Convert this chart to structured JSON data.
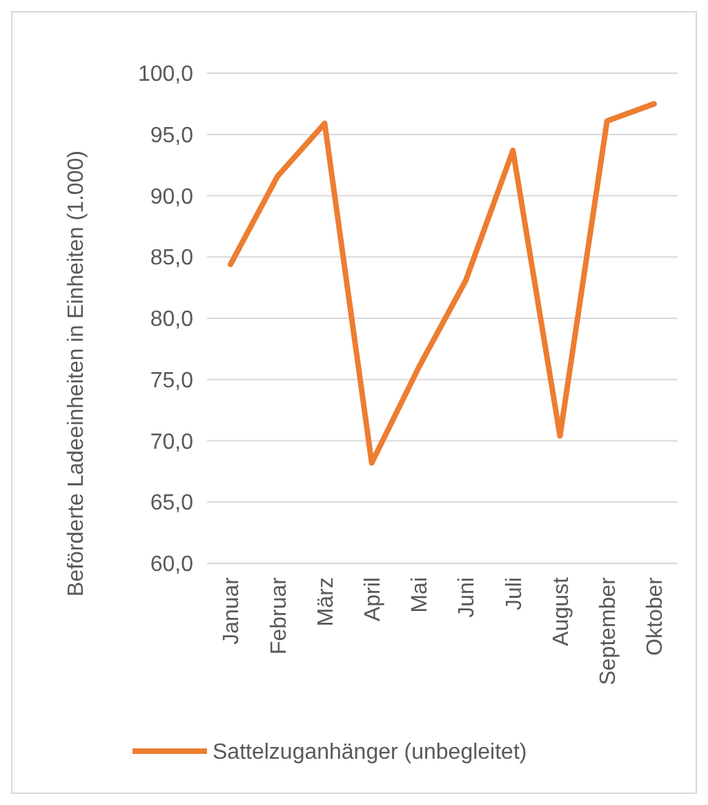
{
  "chart_data": {
    "type": "line",
    "ylabel": "Beförderte Ladeeinheiten in Einheiten (1.000)",
    "categories": [
      "Januar",
      "Februar",
      "März",
      "April",
      "Mai",
      "Juni",
      "Juli",
      "August",
      "September",
      "Oktober"
    ],
    "series": [
      {
        "name": "Sattelzuganhänger (unbegleitet)",
        "color": "#ed7d31",
        "values": [
          84.4,
          91.6,
          95.9,
          68.2,
          76.0,
          83.1,
          93.7,
          70.4,
          96.1,
          97.5
        ]
      }
    ],
    "ylim": [
      60,
      100
    ],
    "yticks": [
      {
        "value": 60,
        "label": "60,0"
      },
      {
        "value": 65,
        "label": "65,0"
      },
      {
        "value": 70,
        "label": "70,0"
      },
      {
        "value": 75,
        "label": "75,0"
      },
      {
        "value": 80,
        "label": "80,0"
      },
      {
        "value": 85,
        "label": "85,0"
      },
      {
        "value": 90,
        "label": "90,0"
      },
      {
        "value": 95,
        "label": "95,0"
      },
      {
        "value": 100,
        "label": "100,0"
      }
    ],
    "grid": "y",
    "legend": "bottom",
    "marker": "none",
    "line_style": "solid"
  }
}
